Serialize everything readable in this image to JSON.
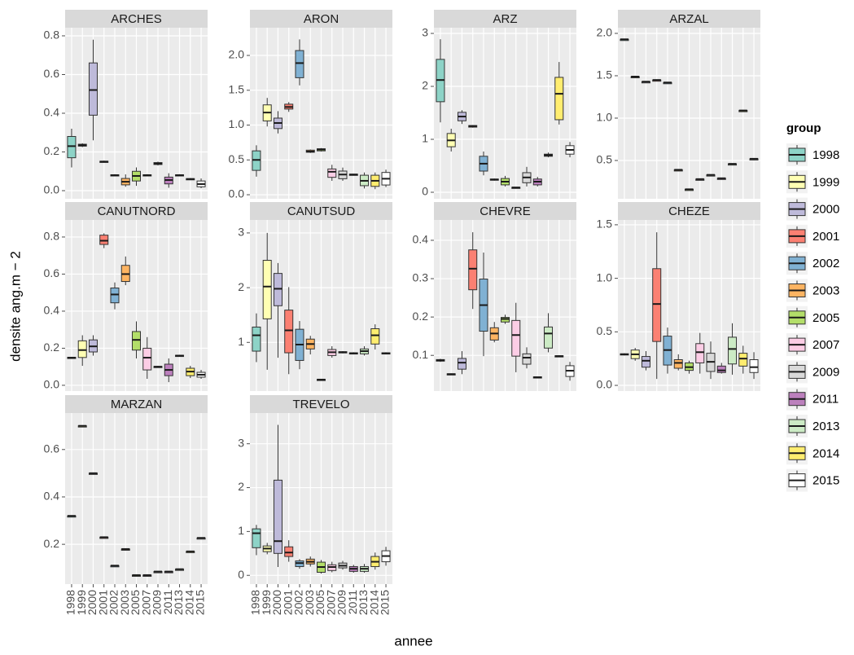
{
  "chart_data": {
    "type": "boxplot",
    "x_label": "annee",
    "y_label": "densite ang.m − 2",
    "legend_title": "group",
    "categories": [
      "1998",
      "1999",
      "2000",
      "2001",
      "2002",
      "2003",
      "2005",
      "2007",
      "2009",
      "2011",
      "2013",
      "2014",
      "2015"
    ],
    "colors": [
      "#8DD3C7",
      "#FFFFB3",
      "#BEBADA",
      "#FB8072",
      "#80B1D3",
      "#FDB462",
      "#B3DE69",
      "#FCCDE5",
      "#D9D9D9",
      "#BC80BD",
      "#CCEBC5",
      "#FFED6F",
      "#FFFFFF"
    ],
    "grid": true,
    "facets": [
      {
        "title": "ARCHES",
        "ylim": [
          -0.042,
          0.842
        ],
        "yticks": [
          {
            "value": 0,
            "label": "0.0"
          },
          0.2,
          0.4,
          0.6,
          0.8
        ],
        "data": [
          [
            0.12,
            0.17,
            0.23,
            0.28,
            0.32
          ],
          [
            0.225,
            0.23,
            0.235,
            0.24,
            0.245
          ],
          [
            0.26,
            0.39,
            0.52,
            0.66,
            0.78
          ],
          [
            0.145,
            0.148,
            0.15,
            0.152,
            0.155
          ],
          [
            0.075,
            0.078,
            0.08,
            0.082,
            0.085
          ],
          [
            0.02,
            0.03,
            0.046,
            0.063,
            0.084
          ],
          [
            0.025,
            0.05,
            0.076,
            0.1,
            0.12
          ],
          [
            0.075,
            0.078,
            0.08,
            0.082,
            0.085
          ],
          [
            0.13,
            0.135,
            0.14,
            0.145,
            0.15
          ],
          [
            0.015,
            0.035,
            0.055,
            0.07,
            0.09
          ],
          [
            0.075,
            0.078,
            0.08,
            0.082,
            0.085
          ],
          [
            0.055,
            0.058,
            0.06,
            0.062,
            0.065
          ],
          [
            0.013,
            0.02,
            0.034,
            0.05,
            0.063
          ]
        ]
      },
      {
        "title": "ARON",
        "ylim": [
          -0.058,
          2.398
        ],
        "yticks": [
          {
            "value": 0,
            "label": "0.0"
          },
          0.5,
          {
            "value": 1,
            "label": "1.0"
          },
          1.5,
          {
            "value": 2,
            "label": "2.0"
          }
        ],
        "data": [
          [
            0.26,
            0.35,
            0.5,
            0.63,
            0.71
          ],
          [
            0.98,
            1.06,
            1.18,
            1.29,
            1.39
          ],
          [
            0.88,
            0.95,
            1.03,
            1.1,
            1.2
          ],
          [
            1.19,
            1.23,
            1.26,
            1.3,
            1.33
          ],
          [
            1.57,
            1.68,
            1.89,
            2.07,
            2.23
          ],
          [
            0.6,
            0.61,
            0.62,
            0.64,
            0.65
          ],
          [
            0.62,
            0.63,
            0.65,
            0.66,
            0.67
          ],
          [
            0.2,
            0.25,
            0.33,
            0.37,
            0.43
          ],
          [
            0.2,
            0.23,
            0.29,
            0.34,
            0.39
          ],
          [
            0.28,
            0.285,
            0.29,
            0.295,
            0.3
          ],
          [
            0.09,
            0.13,
            0.2,
            0.28,
            0.32
          ],
          [
            0.08,
            0.12,
            0.2,
            0.28,
            0.32
          ],
          [
            0.11,
            0.14,
            0.23,
            0.32,
            0.36
          ]
        ]
      },
      {
        "title": "ARZ",
        "ylim": [
          -0.123,
          3.108
        ],
        "yticks": [
          0,
          1,
          2,
          3
        ],
        "data": [
          [
            1.32,
            1.71,
            2.12,
            2.51,
            2.89
          ],
          [
            0.77,
            0.86,
            0.98,
            1.11,
            1.2
          ],
          [
            1.29,
            1.35,
            1.43,
            1.51,
            1.55
          ],
          [
            1.22,
            1.23,
            1.25,
            1.26,
            1.27
          ],
          [
            0.32,
            0.4,
            0.54,
            0.68,
            0.77
          ],
          [
            0.22,
            0.23,
            0.24,
            0.25,
            0.26
          ],
          [
            0.11,
            0.14,
            0.2,
            0.26,
            0.31
          ],
          [
            0.08,
            0.085,
            0.09,
            0.095,
            0.1
          ],
          [
            0.11,
            0.18,
            0.28,
            0.37,
            0.48
          ],
          [
            0.11,
            0.14,
            0.2,
            0.25,
            0.29
          ],
          [
            0.66,
            0.68,
            0.7,
            0.72,
            0.75
          ],
          [
            1.28,
            1.37,
            1.86,
            2.17,
            2.46
          ],
          [
            0.66,
            0.72,
            0.8,
            0.88,
            0.95
          ]
        ]
      },
      {
        "title": "ARZAL",
        "ylim": [
          0.048,
          2.067
        ],
        "yticks": [
          0.5,
          {
            "value": 1,
            "label": "1.0"
          },
          1.5,
          {
            "value": 2,
            "label": "2.0"
          }
        ],
        "data": [
          [
            1.93,
            1.93,
            1.93,
            1.93,
            1.93
          ],
          [
            1.49,
            1.49,
            1.49,
            1.49,
            1.49
          ],
          [
            1.43,
            1.43,
            1.43,
            1.43,
            1.43
          ],
          [
            1.45,
            1.45,
            1.45,
            1.45,
            1.45
          ],
          [
            1.42,
            1.42,
            1.42,
            1.42,
            1.42
          ],
          [
            0.39,
            0.39,
            0.39,
            0.39,
            0.39
          ],
          [
            0.16,
            0.16,
            0.16,
            0.16,
            0.16
          ],
          [
            0.28,
            0.28,
            0.28,
            0.28,
            0.28
          ],
          [
            0.33,
            0.33,
            0.33,
            0.33,
            0.33
          ],
          [
            0.29,
            0.29,
            0.29,
            0.29,
            0.29
          ],
          [
            0.46,
            0.46,
            0.46,
            0.46,
            0.46
          ],
          [
            1.09,
            1.09,
            1.09,
            1.09,
            1.09
          ],
          [
            0.52,
            0.52,
            0.52,
            0.52,
            0.52
          ]
        ]
      },
      {
        "title": "CANUTNORD",
        "ylim": [
          -0.031,
          0.892
        ],
        "yticks": [
          {
            "value": 0,
            "label": "0.0"
          },
          0.2,
          0.4,
          0.6,
          0.8
        ],
        "data": [
          [
            0.145,
            0.147,
            0.149,
            0.151,
            0.153
          ],
          [
            0.105,
            0.15,
            0.19,
            0.24,
            0.27
          ],
          [
            0.16,
            0.18,
            0.21,
            0.245,
            0.27
          ],
          [
            0.74,
            0.76,
            0.78,
            0.81,
            0.82
          ],
          [
            0.41,
            0.445,
            0.49,
            0.525,
            0.555
          ],
          [
            0.54,
            0.56,
            0.6,
            0.647,
            0.695
          ],
          [
            0.145,
            0.19,
            0.245,
            0.29,
            0.345
          ],
          [
            0.035,
            0.083,
            0.149,
            0.2,
            0.26
          ],
          [
            0.095,
            0.098,
            0.1,
            0.102,
            0.105
          ],
          [
            0.017,
            0.052,
            0.083,
            0.114,
            0.145
          ],
          [
            0.155,
            0.158,
            0.16,
            0.162,
            0.165
          ],
          [
            0.039,
            0.052,
            0.074,
            0.092,
            0.105
          ],
          [
            0.035,
            0.044,
            0.057,
            0.07,
            0.083
          ]
        ]
      },
      {
        "title": "CANUTSUD",
        "ylim": [
          0.111,
          3.237
        ],
        "yticks": [
          1,
          2,
          3
        ],
        "data": [
          [
            0.64,
            0.84,
            1.13,
            1.28,
            1.53
          ],
          [
            0.5,
            1.43,
            2.02,
            2.5,
            3.0
          ],
          [
            0.72,
            1.67,
            1.98,
            2.26,
            2.45
          ],
          [
            0.42,
            0.81,
            1.22,
            1.59,
            2.01
          ],
          [
            0.51,
            0.67,
            0.96,
            1.24,
            1.39
          ],
          [
            0.78,
            0.88,
            0.97,
            1.06,
            1.12
          ],
          [
            0.31,
            0.315,
            0.32,
            0.325,
            0.33
          ],
          [
            0.72,
            0.76,
            0.82,
            0.87,
            0.93
          ],
          [
            0.8,
            0.81,
            0.82,
            0.83,
            0.84
          ],
          [
            0.78,
            0.79,
            0.8,
            0.81,
            0.82
          ],
          [
            0.76,
            0.79,
            0.84,
            0.88,
            0.93
          ],
          [
            0.87,
            0.97,
            1.13,
            1.25,
            1.33
          ],
          [
            0.78,
            0.79,
            0.8,
            0.81,
            0.82
          ]
        ]
      },
      {
        "title": "CHEVRE",
        "ylim": [
          0.007,
          0.453
        ],
        "yticks": [
          0.1,
          0.2,
          0.3,
          0.4
        ],
        "data": [
          [
            0.083,
            0.085,
            0.087,
            0.089,
            0.091
          ],
          [
            0.049,
            0.05,
            0.051,
            0.052,
            0.053
          ],
          [
            0.051,
            0.064,
            0.081,
            0.092,
            0.111
          ],
          [
            0.221,
            0.271,
            0.326,
            0.375,
            0.421
          ],
          [
            0.098,
            0.163,
            0.231,
            0.299,
            0.368
          ],
          [
            0.134,
            0.14,
            0.157,
            0.172,
            0.187
          ],
          [
            0.182,
            0.187,
            0.195,
            0.199,
            0.206
          ],
          [
            0.056,
            0.098,
            0.153,
            0.191,
            0.237
          ],
          [
            0.066,
            0.077,
            0.094,
            0.104,
            0.121
          ],
          [
            0.041,
            0.042,
            0.043,
            0.044,
            0.045
          ],
          [
            0.108,
            0.119,
            0.157,
            0.174,
            0.21
          ],
          [
            0.096,
            0.097,
            0.098,
            0.099,
            0.1
          ],
          [
            0.034,
            0.045,
            0.06,
            0.073,
            0.083
          ]
        ]
      },
      {
        "title": "CHEZE",
        "ylim": [
          -0.053,
          1.545
        ],
        "yticks": [
          {
            "value": 0,
            "label": "0.0"
          },
          0.5,
          {
            "value": 1,
            "label": "1.0"
          },
          1.5
        ],
        "data": [
          [
            0.28,
            0.285,
            0.29,
            0.295,
            0.3
          ],
          [
            0.23,
            0.25,
            0.29,
            0.33,
            0.35
          ],
          [
            0.14,
            0.17,
            0.23,
            0.27,
            0.32
          ],
          [
            0.06,
            0.41,
            0.76,
            1.09,
            1.43
          ],
          [
            0.11,
            0.19,
            0.33,
            0.46,
            0.54
          ],
          [
            0.14,
            0.16,
            0.21,
            0.24,
            0.29
          ],
          [
            0.11,
            0.14,
            0.17,
            0.21,
            0.23
          ],
          [
            0.11,
            0.21,
            0.31,
            0.39,
            0.49
          ],
          [
            0.06,
            0.13,
            0.22,
            0.3,
            0.41
          ],
          [
            0.11,
            0.12,
            0.14,
            0.18,
            0.21
          ],
          [
            0.1,
            0.2,
            0.34,
            0.45,
            0.58
          ],
          [
            0.11,
            0.18,
            0.25,
            0.3,
            0.37
          ],
          [
            0.06,
            0.12,
            0.17,
            0.24,
            0.31
          ]
        ]
      },
      {
        "title": "MARZAN",
        "ylim": [
          0.032,
          0.754
        ],
        "yticks": [
          0.2,
          0.4,
          0.6
        ],
        "data": [
          [
            0.32,
            0.32,
            0.32,
            0.32,
            0.32
          ],
          [
            0.7,
            0.7,
            0.7,
            0.7,
            0.7
          ],
          [
            0.5,
            0.5,
            0.5,
            0.5,
            0.5
          ],
          [
            0.23,
            0.23,
            0.23,
            0.23,
            0.23
          ],
          [
            0.11,
            0.11,
            0.11,
            0.11,
            0.11
          ],
          [
            0.18,
            0.18,
            0.18,
            0.18,
            0.18
          ],
          [
            0.07,
            0.07,
            0.07,
            0.07,
            0.07
          ],
          [
            0.07,
            0.07,
            0.07,
            0.07,
            0.07
          ],
          [
            0.085,
            0.085,
            0.085,
            0.085,
            0.085
          ],
          [
            0.085,
            0.085,
            0.085,
            0.085,
            0.085
          ],
          [
            0.095,
            0.095,
            0.095,
            0.095,
            0.095
          ],
          [
            0.17,
            0.17,
            0.17,
            0.17,
            0.17
          ],
          [
            0.227,
            0.227,
            0.227,
            0.227,
            0.227
          ]
        ]
      },
      {
        "title": "TREVELO",
        "ylim": [
          -0.2,
          3.7
        ],
        "yticks": [
          0,
          1,
          2,
          3
        ],
        "data": [
          [
            0.46,
            0.63,
            0.96,
            1.06,
            1.15
          ],
          [
            0.48,
            0.54,
            0.61,
            0.67,
            0.74
          ],
          [
            0.19,
            0.5,
            0.78,
            2.17,
            3.43
          ],
          [
            0.31,
            0.43,
            0.52,
            0.65,
            0.8
          ],
          [
            0.15,
            0.2,
            0.28,
            0.33,
            0.37
          ],
          [
            0.2,
            0.26,
            0.31,
            0.37,
            0.43
          ],
          [
            0.04,
            0.07,
            0.19,
            0.3,
            0.35
          ],
          [
            0.07,
            0.11,
            0.19,
            0.24,
            0.31
          ],
          [
            0.13,
            0.17,
            0.22,
            0.28,
            0.33
          ],
          [
            0.06,
            0.09,
            0.15,
            0.2,
            0.24
          ],
          [
            0.06,
            0.09,
            0.15,
            0.2,
            0.26
          ],
          [
            0.13,
            0.2,
            0.31,
            0.43,
            0.52
          ],
          [
            0.22,
            0.31,
            0.44,
            0.56,
            0.65
          ]
        ]
      }
    ]
  }
}
